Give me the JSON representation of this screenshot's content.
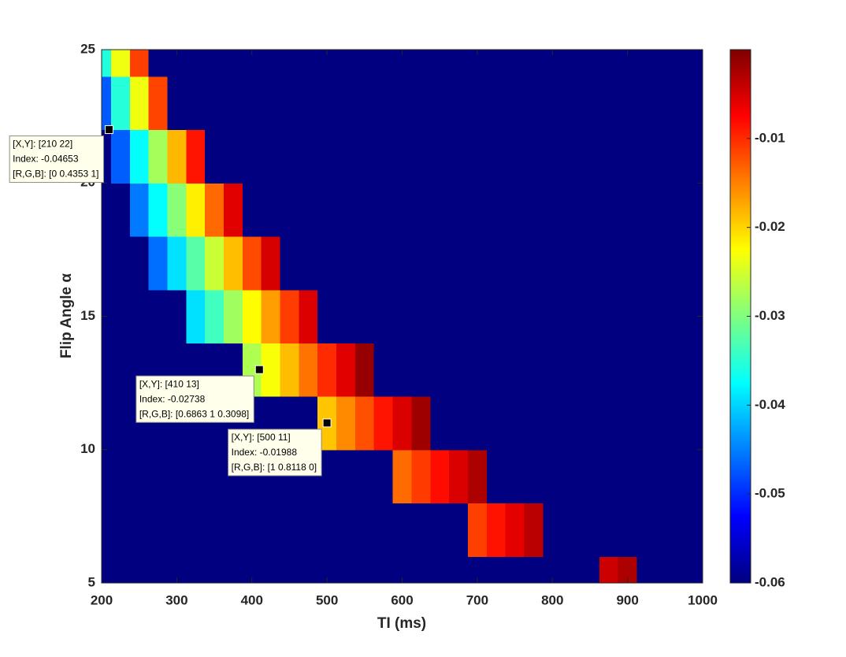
{
  "chart_data": {
    "type": "heatmap",
    "xlabel": "TI (ms)",
    "ylabel": "Flip Angle α",
    "colormap": "jet",
    "x": [
      200,
      225,
      250,
      275,
      300,
      325,
      350,
      375,
      400,
      425,
      450,
      475,
      500,
      525,
      550,
      575,
      600,
      625,
      650,
      675,
      700,
      725,
      750,
      775,
      800,
      825,
      850,
      875,
      900,
      925,
      950,
      975,
      1000
    ],
    "y": [
      5,
      7,
      9,
      11,
      13,
      15,
      17,
      19,
      21,
      23,
      25
    ],
    "z": [
      [
        -0.06,
        -0.06,
        -0.06,
        -0.06,
        -0.06,
        -0.06,
        -0.06,
        -0.06,
        -0.06,
        -0.06,
        -0.06,
        -0.06,
        -0.06,
        -0.06,
        -0.06,
        -0.06,
        -0.06,
        -0.06,
        -0.06,
        -0.06,
        -0.06,
        -0.06,
        -0.06,
        -0.06,
        -0.06,
        -0.06,
        -0.06,
        -0.0045,
        -0.0027,
        -0.06,
        -0.06,
        -0.06,
        -0.06
      ],
      [
        -0.06,
        -0.06,
        -0.06,
        -0.06,
        -0.06,
        -0.06,
        -0.06,
        -0.06,
        -0.06,
        -0.06,
        -0.06,
        -0.06,
        -0.06,
        -0.06,
        -0.06,
        -0.06,
        -0.06,
        -0.06,
        -0.06,
        -0.06,
        -0.0112,
        -0.0086,
        -0.006,
        -0.0035,
        -0.06,
        -0.06,
        -0.06,
        -0.06,
        -0.06,
        -0.06,
        -0.06,
        -0.06,
        -0.06
      ],
      [
        -0.06,
        -0.06,
        -0.06,
        -0.06,
        -0.06,
        -0.06,
        -0.06,
        -0.06,
        -0.06,
        -0.06,
        -0.06,
        -0.06,
        -0.06,
        -0.06,
        -0.06,
        -0.06,
        -0.0138,
        -0.011,
        -0.0082,
        -0.0054,
        -0.0027,
        -0.06,
        -0.06,
        -0.06,
        -0.06,
        -0.06,
        -0.06,
        -0.06,
        -0.06,
        -0.06,
        -0.06,
        -0.06,
        -0.06
      ],
      [
        -0.06,
        -0.06,
        -0.06,
        -0.06,
        -0.06,
        -0.06,
        -0.06,
        -0.06,
        -0.06,
        -0.06,
        -0.06,
        -0.06,
        -0.0191,
        -0.0156,
        -0.0122,
        -0.0087,
        -0.0053,
        -0.0018,
        -0.06,
        -0.06,
        -0.06,
        -0.06,
        -0.06,
        -0.06,
        -0.06,
        -0.06,
        -0.06,
        -0.06,
        -0.06,
        -0.06,
        -0.06,
        -0.06,
        -0.06
      ],
      [
        -0.06,
        -0.06,
        -0.06,
        -0.06,
        -0.06,
        -0.06,
        -0.06,
        -0.06,
        -0.0272,
        -0.0229,
        -0.0186,
        -0.0143,
        -0.01,
        -0.0057,
        -0.0013,
        -0.06,
        -0.06,
        -0.06,
        -0.06,
        -0.06,
        -0.06,
        -0.06,
        -0.06,
        -0.06,
        -0.06,
        -0.06,
        -0.06,
        -0.06,
        -0.06,
        -0.06,
        -0.06,
        -0.06,
        -0.06
      ],
      [
        -0.06,
        -0.06,
        -0.06,
        -0.06,
        -0.06,
        -0.0393,
        -0.0337,
        -0.0281,
        -0.0224,
        -0.0168,
        -0.0111,
        -0.0055,
        -0.06,
        -0.06,
        -0.06,
        -0.06,
        -0.06,
        -0.06,
        -0.06,
        -0.06,
        -0.06,
        -0.06,
        -0.06,
        -0.06,
        -0.06,
        -0.06,
        -0.06,
        -0.06,
        -0.06,
        -0.06,
        -0.06,
        -0.06,
        -0.06
      ],
      [
        -0.06,
        -0.06,
        -0.06,
        -0.046,
        -0.0392,
        -0.0324,
        -0.0256,
        -0.0187,
        -0.0119,
        -0.0051,
        -0.06,
        -0.06,
        -0.06,
        -0.06,
        -0.06,
        -0.06,
        -0.06,
        -0.06,
        -0.06,
        -0.06,
        -0.06,
        -0.06,
        -0.06,
        -0.06,
        -0.06,
        -0.06,
        -0.06,
        -0.06,
        -0.06,
        -0.06,
        -0.06,
        -0.06,
        -0.06
      ],
      [
        -0.06,
        -0.06,
        -0.0453,
        -0.0374,
        -0.0295,
        -0.0216,
        -0.0137,
        -0.0057,
        -0.06,
        -0.06,
        -0.06,
        -0.06,
        -0.06,
        -0.06,
        -0.06,
        -0.06,
        -0.06,
        -0.06,
        -0.06,
        -0.06,
        -0.06,
        -0.06,
        -0.06,
        -0.06,
        -0.06,
        -0.06,
        -0.06,
        -0.06,
        -0.06,
        -0.06,
        -0.06,
        -0.06,
        -0.06
      ],
      [
        -0.06,
        -0.047,
        -0.0374,
        -0.0278,
        -0.0183,
        -0.0087,
        -0.06,
        -0.06,
        -0.06,
        -0.06,
        -0.06,
        -0.06,
        -0.06,
        -0.06,
        -0.06,
        -0.06,
        -0.06,
        -0.06,
        -0.06,
        -0.06,
        -0.06,
        -0.06,
        -0.06,
        -0.06,
        -0.06,
        -0.06,
        -0.06,
        -0.06,
        -0.06,
        -0.06,
        -0.06,
        -0.06,
        -0.06
      ],
      [
        -0.0472,
        -0.0353,
        -0.0234,
        -0.0115,
        -0.06,
        -0.06,
        -0.06,
        -0.06,
        -0.06,
        -0.06,
        -0.06,
        -0.06,
        -0.06,
        -0.06,
        -0.06,
        -0.06,
        -0.06,
        -0.06,
        -0.06,
        -0.06,
        -0.06,
        -0.06,
        -0.06,
        -0.06,
        -0.06,
        -0.06,
        -0.06,
        -0.06,
        -0.06,
        -0.06,
        -0.06,
        -0.06,
        -0.06
      ],
      [
        -0.0355,
        -0.0234,
        -0.0112,
        -0.06,
        -0.06,
        -0.06,
        -0.06,
        -0.06,
        -0.06,
        -0.06,
        -0.06,
        -0.06,
        -0.06,
        -0.06,
        -0.06,
        -0.06,
        -0.06,
        -0.06,
        -0.06,
        -0.06,
        -0.06,
        -0.06,
        -0.06,
        -0.06,
        -0.06,
        -0.06,
        -0.06,
        -0.06,
        -0.06,
        -0.06,
        -0.06,
        -0.06,
        -0.06
      ]
    ],
    "xlim": [
      200,
      1000
    ],
    "xticks": [
      200,
      300,
      400,
      500,
      600,
      700,
      800,
      900,
      1000
    ],
    "ylim": [
      5,
      25
    ],
    "yticks": [
      5,
      10,
      15,
      20,
      25
    ],
    "clim": [
      -0.06,
      0
    ],
    "cticks": [
      -0.06,
      -0.05,
      -0.04,
      -0.03,
      -0.02,
      -0.01
    ],
    "annotations": [
      {
        "x": 210,
        "y": 22,
        "lines": [
          "[X,Y]: [210 22]",
          "Index: -0.04653",
          "[R,G,B]: [0 0.4353 1]"
        ]
      },
      {
        "x": 410,
        "y": 13,
        "lines": [
          "[X,Y]: [410 13]",
          "Index: -0.02738",
          "[R,G,B]: [0.6863 1 0.3098]"
        ]
      },
      {
        "x": 500,
        "y": 11,
        "lines": [
          "[X,Y]: [500 11]",
          "Index: -0.01988",
          "[R,G,B]: [1 0.8118 0]"
        ]
      }
    ]
  }
}
